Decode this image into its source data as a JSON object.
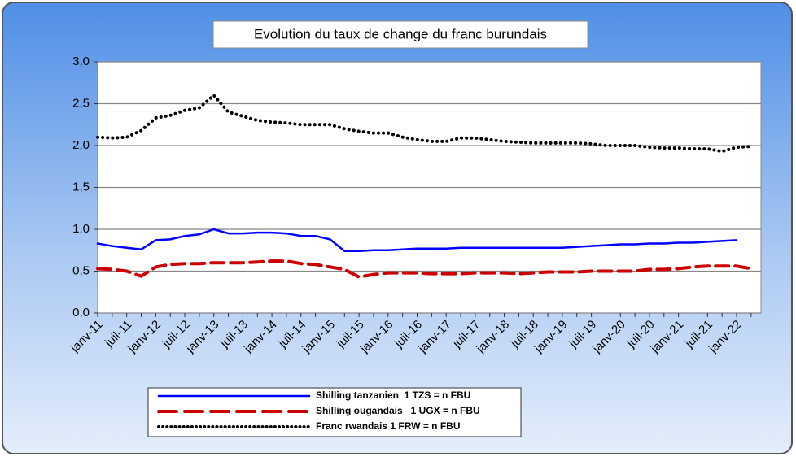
{
  "chart_data": {
    "type": "line",
    "title": "Evolution du taux de change du franc burundais",
    "categories": [
      "janv-11",
      null,
      "juil-11",
      null,
      "janv-12",
      null,
      "juil-12",
      null,
      "janv-13",
      null,
      "juil-13",
      null,
      "janv-14",
      null,
      "juil-14",
      null,
      "janv-15",
      null,
      "juil-15",
      null,
      "janv-16",
      null,
      "juil-16",
      null,
      "janv-17",
      null,
      "juil-17",
      null,
      "janv-18",
      null,
      "juil-18",
      null,
      "janv-19",
      null,
      "juil-19",
      null,
      "janv-20",
      null,
      "juil-20",
      null,
      "janv-21",
      null,
      "juil-21",
      null,
      "janv-22",
      null
    ],
    "series": [
      {
        "name": "Shilling tanzanien  1 TZS = n FBU",
        "color": "#0000ff",
        "style": "solid",
        "values": [
          0.83,
          0.8,
          0.78,
          0.76,
          0.87,
          0.88,
          0.92,
          0.94,
          1.0,
          0.95,
          0.95,
          0.96,
          0.96,
          0.95,
          0.92,
          0.92,
          0.88,
          0.74,
          0.74,
          0.75,
          0.75,
          0.76,
          0.77,
          0.77,
          0.77,
          0.78,
          0.78,
          0.78,
          0.78,
          0.78,
          0.78,
          0.78,
          0.78,
          0.79,
          0.8,
          0.81,
          0.82,
          0.82,
          0.83,
          0.83,
          0.84,
          0.84,
          0.85,
          0.86,
          0.87,
          null
        ]
      },
      {
        "name": "Shilling ougandais   1 UGX = n FBU",
        "color": "#cc0000",
        "style": "dashed",
        "values": [
          0.53,
          0.52,
          0.5,
          0.44,
          0.55,
          0.58,
          0.59,
          0.59,
          0.6,
          0.6,
          0.6,
          0.61,
          0.62,
          0.62,
          0.59,
          0.58,
          0.55,
          0.52,
          0.43,
          0.46,
          0.48,
          0.48,
          0.48,
          0.47,
          0.47,
          0.47,
          0.48,
          0.48,
          0.48,
          0.47,
          0.48,
          0.49,
          0.49,
          0.49,
          0.5,
          0.5,
          0.5,
          0.5,
          0.52,
          0.52,
          0.53,
          0.55,
          0.56,
          0.56,
          0.56,
          0.53
        ]
      },
      {
        "name": "Franc rwandais 1 FRW = n FBU",
        "color": "#000000",
        "style": "dotted",
        "values": [
          2.1,
          2.09,
          2.1,
          2.18,
          2.33,
          2.36,
          2.42,
          2.45,
          2.6,
          2.4,
          2.35,
          2.3,
          2.28,
          2.27,
          2.25,
          2.25,
          2.25,
          2.2,
          2.17,
          2.15,
          2.15,
          2.1,
          2.07,
          2.05,
          2.05,
          2.09,
          2.09,
          2.07,
          2.05,
          2.04,
          2.03,
          2.03,
          2.03,
          2.03,
          2.02,
          2.0,
          2.0,
          2.0,
          1.98,
          1.97,
          1.97,
          1.96,
          1.96,
          1.93,
          1.98,
          1.99
        ]
      }
    ],
    "ylim": [
      0,
      3
    ],
    "yticks": [
      {
        "value": 0,
        "label": "0,0"
      },
      {
        "value": 0.5,
        "label": "0,5"
      },
      {
        "value": 1,
        "label": "1,0"
      },
      {
        "value": 1.5,
        "label": "1,5"
      },
      {
        "value": 2,
        "label": "2,0"
      },
      {
        "value": 2.5,
        "label": "2,5"
      },
      {
        "value": 3,
        "label": "3,0"
      }
    ],
    "grid": true,
    "legend": "bottom"
  }
}
